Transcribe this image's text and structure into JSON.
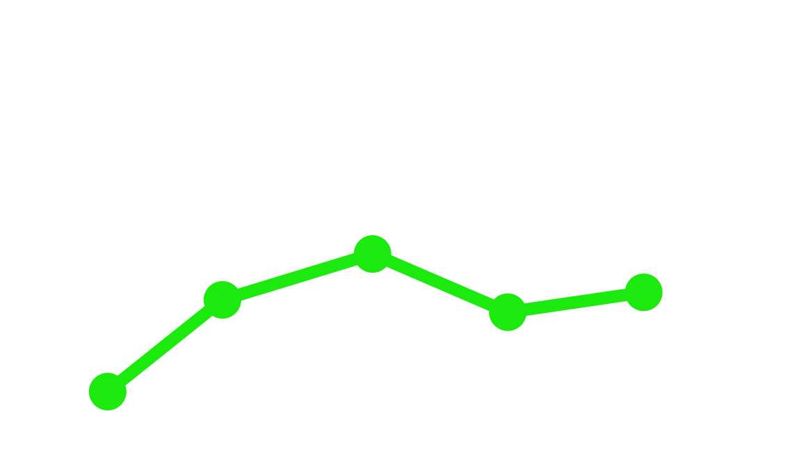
{
  "chart_data": {
    "type": "line",
    "x": [
      13.7,
      28.3,
      47.4,
      64.6,
      81.9
    ],
    "series": [
      {
        "color": "#1ce90e",
        "values": [
          17.2,
          36.6,
          46.3,
          34.0,
          38.2
        ]
      }
    ],
    "xlim": [
      0,
      100
    ],
    "ylim": [
      0,
      100
    ]
  }
}
